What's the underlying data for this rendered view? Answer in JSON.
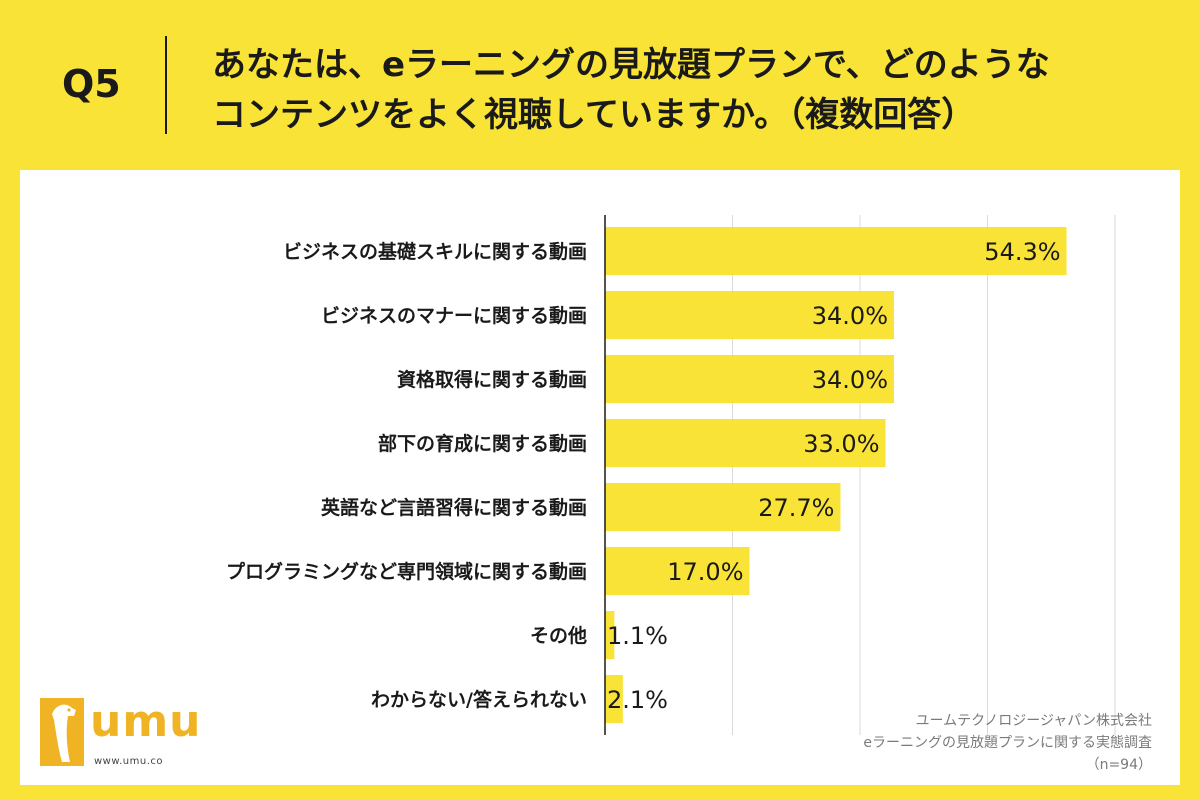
{
  "header": {
    "q_label": "Q5",
    "question_line1": "あなたは、eラーニングの見放題プランで、どのような",
    "question_line2": "コンテンツをよく視聴していますか。（複数回答）"
  },
  "colors": {
    "background": "#f9e336",
    "bar": "#f9e336",
    "panel": "#ffffff",
    "grid": "#d9d9d9",
    "logo": "#f0b323"
  },
  "logo": {
    "icon": "giraffe-logo-icon",
    "text": "umu",
    "url": "www.umu.co"
  },
  "source": {
    "company": "ユームテクノロジージャパン株式会社",
    "survey": "eラーニングの見放題プランに関する実態調査",
    "n": "（n=94）"
  },
  "chart_data": {
    "type": "bar",
    "orientation": "horizontal",
    "categories": [
      "ビジネスの基礎スキルに関する動画",
      "ビジネスのマナーに関する動画",
      "資格取得に関する動画",
      "部下の育成に関する動画",
      "英語など言語習得に関する動画",
      "プログラミングなど専門領域に関する動画",
      "その他",
      "わからない/答えられない"
    ],
    "values": [
      54.3,
      34.0,
      34.0,
      33.0,
      27.7,
      17.0,
      1.1,
      2.1
    ],
    "value_labels": [
      "54.3%",
      "34.0%",
      "34.0%",
      "33.0%",
      "27.7%",
      "17.0%",
      "1.1%",
      "2.1%"
    ],
    "xlim": [
      0,
      60
    ],
    "grid": true,
    "legend": "none"
  }
}
